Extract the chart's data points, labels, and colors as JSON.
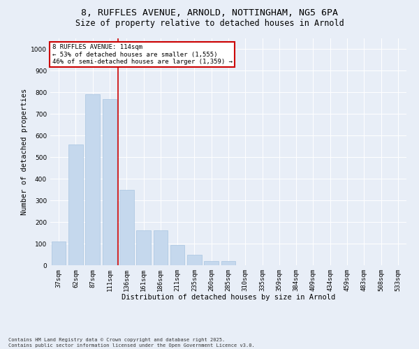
{
  "title_line1": "8, RUFFLES AVENUE, ARNOLD, NOTTINGHAM, NG5 6PA",
  "title_line2": "Size of property relative to detached houses in Arnold",
  "xlabel": "Distribution of detached houses by size in Arnold",
  "ylabel": "Number of detached properties",
  "categories": [
    "37sqm",
    "62sqm",
    "87sqm",
    "111sqm",
    "136sqm",
    "161sqm",
    "186sqm",
    "211sqm",
    "235sqm",
    "260sqm",
    "285sqm",
    "310sqm",
    "335sqm",
    "359sqm",
    "384sqm",
    "409sqm",
    "434sqm",
    "459sqm",
    "483sqm",
    "508sqm",
    "533sqm"
  ],
  "values": [
    110,
    560,
    790,
    770,
    350,
    160,
    160,
    95,
    50,
    20,
    20,
    0,
    0,
    0,
    0,
    0,
    0,
    0,
    0,
    0,
    0
  ],
  "bar_color": "#c5d8ed",
  "bar_edge_color": "#a8c4e0",
  "vline_color": "#cc0000",
  "vline_pos": 3.5,
  "annotation_text": "8 RUFFLES AVENUE: 114sqm\n← 53% of detached houses are smaller (1,555)\n46% of semi-detached houses are larger (1,359) →",
  "annotation_box_facecolor": "#ffffff",
  "annotation_box_edgecolor": "#cc0000",
  "ylim": [
    0,
    1050
  ],
  "yticks": [
    0,
    100,
    200,
    300,
    400,
    500,
    600,
    700,
    800,
    900,
    1000
  ],
  "bg_color": "#e8eef7",
  "footer_text": "Contains HM Land Registry data © Crown copyright and database right 2025.\nContains public sector information licensed under the Open Government Licence v3.0.",
  "title_fontsize": 9.5,
  "subtitle_fontsize": 8.5,
  "axis_label_fontsize": 7.5,
  "tick_fontsize": 6.5,
  "annotation_fontsize": 6.5,
  "footer_fontsize": 5.0
}
